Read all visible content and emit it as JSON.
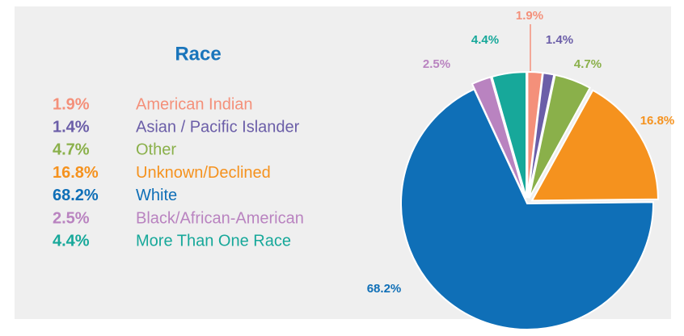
{
  "chart_data": {
    "type": "pie",
    "title": "Race",
    "categories": [
      "American Indian",
      "Asian / Pacific Islander",
      "Other",
      "Unknown/Declined",
      "White",
      "Black/African-American",
      "More Than One Race"
    ],
    "values": [
      1.9,
      1.4,
      4.7,
      16.8,
      68.2,
      2.5,
      4.4
    ],
    "value_labels": [
      "1.9%",
      "1.4%",
      "4.7%",
      "16.8%",
      "68.2%",
      "2.5%",
      "4.4%"
    ],
    "colors": [
      "#f4907a",
      "#6b5ea8",
      "#8ab04a",
      "#f5921e",
      "#0f6fb7",
      "#b983c0",
      "#17a89a"
    ]
  }
}
